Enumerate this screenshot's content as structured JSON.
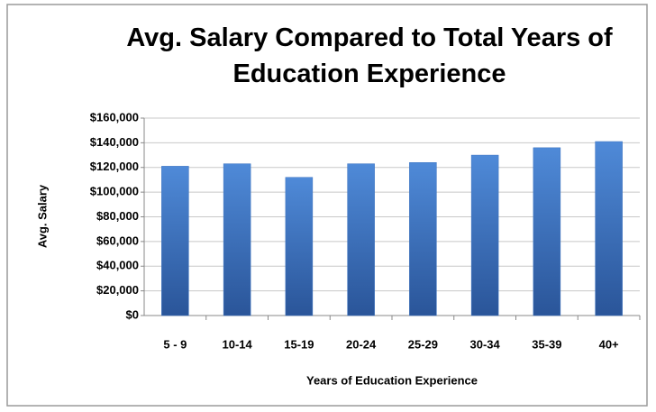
{
  "chart_data": {
    "type": "bar",
    "title": "Avg. Salary Compared to Total Years of Education Experience",
    "x_label": "Years of Education Experience",
    "y_label": "Avg. Salary",
    "categories": [
      "5 - 9",
      "10-14",
      "15-19",
      "20-24",
      "25-29",
      "30-34",
      "35-39",
      "40+"
    ],
    "values": [
      121000,
      123000,
      112000,
      123000,
      124000,
      130000,
      136000,
      141000
    ],
    "color": "#3a72c0",
    "ylim": [
      0,
      160000
    ],
    "yticks": [
      {
        "value": 0,
        "label": "$0"
      },
      {
        "value": 20000,
        "label": "$20,000"
      },
      {
        "value": 40000,
        "label": "$40,000"
      },
      {
        "value": 60000,
        "label": "$60,000"
      },
      {
        "value": 80000,
        "label": "$80,000"
      },
      {
        "value": 100000,
        "label": "$100,000"
      },
      {
        "value": 120000,
        "label": "$120,000"
      },
      {
        "value": 140000,
        "label": "$140,000"
      },
      {
        "value": 160000,
        "label": "$160,000"
      }
    ],
    "grid": true
  }
}
